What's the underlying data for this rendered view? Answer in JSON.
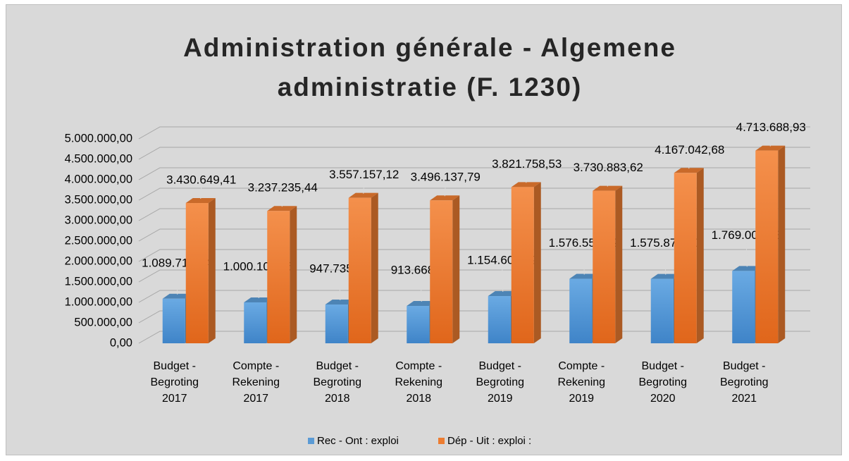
{
  "chart_data": {
    "type": "bar3d",
    "title": "Administration générale - Algemene administratie (F. 1230)",
    "categories": [
      "Budget - Begroting 2017",
      "Compte - Rekening 2017",
      "Budget - Begroting 2018",
      "Compte - Rekening 2018",
      "Budget - Begroting 2019",
      "Compte - Rekening 2019",
      "Budget - Begroting 2020",
      "Budget - Begroting 2021"
    ],
    "series": [
      {
        "name": "Rec - Ont : exploi",
        "color": "#5b9bd5",
        "values": [
          1089719.54,
          1000100.35,
          947735.3,
          913668.34,
          1154607.79,
          1576558.12,
          1575871.8,
          1769008.33
        ],
        "value_labels": [
          "1.089.719,54",
          "1.000.100,35",
          "947.735,30",
          "913.668,34",
          "1.154.607,79",
          "1.576.558,12",
          "1.575.871,80",
          "1.769.008,33"
        ]
      },
      {
        "name": "Dép - Uit : exploi :",
        "color": "#ed7d31",
        "values": [
          3430649.41,
          3237235.44,
          3557157.12,
          3496137.79,
          3821758.53,
          3730883.62,
          4167042.68,
          4713688.93
        ],
        "value_labels": [
          "3.430.649,41",
          "3.237.235,44",
          "3.557.157,12",
          "3.496.137,79",
          "3.821.758,53",
          "3.730.883,62",
          "4.167.042,68",
          "4.713.688,93"
        ]
      }
    ],
    "ylim": [
      0,
      5000000
    ],
    "yticks": [
      {
        "value": 0,
        "label": "0,00"
      },
      {
        "value": 500000,
        "label": "500.000,00"
      },
      {
        "value": 1000000,
        "label": "1.000.000,00"
      },
      {
        "value": 1500000,
        "label": "1.500.000,00"
      },
      {
        "value": 2000000,
        "label": "2.000.000,00"
      },
      {
        "value": 2500000,
        "label": "2.500.000,00"
      },
      {
        "value": 3000000,
        "label": "3.000.000,00"
      },
      {
        "value": 3500000,
        "label": "3.500.000,00"
      },
      {
        "value": 4000000,
        "label": "4.000.000,00"
      },
      {
        "value": 4500000,
        "label": "4.500.000,00"
      },
      {
        "value": 5000000,
        "label": "5.000.000,00"
      }
    ],
    "grid": true,
    "legend": "bottom"
  }
}
